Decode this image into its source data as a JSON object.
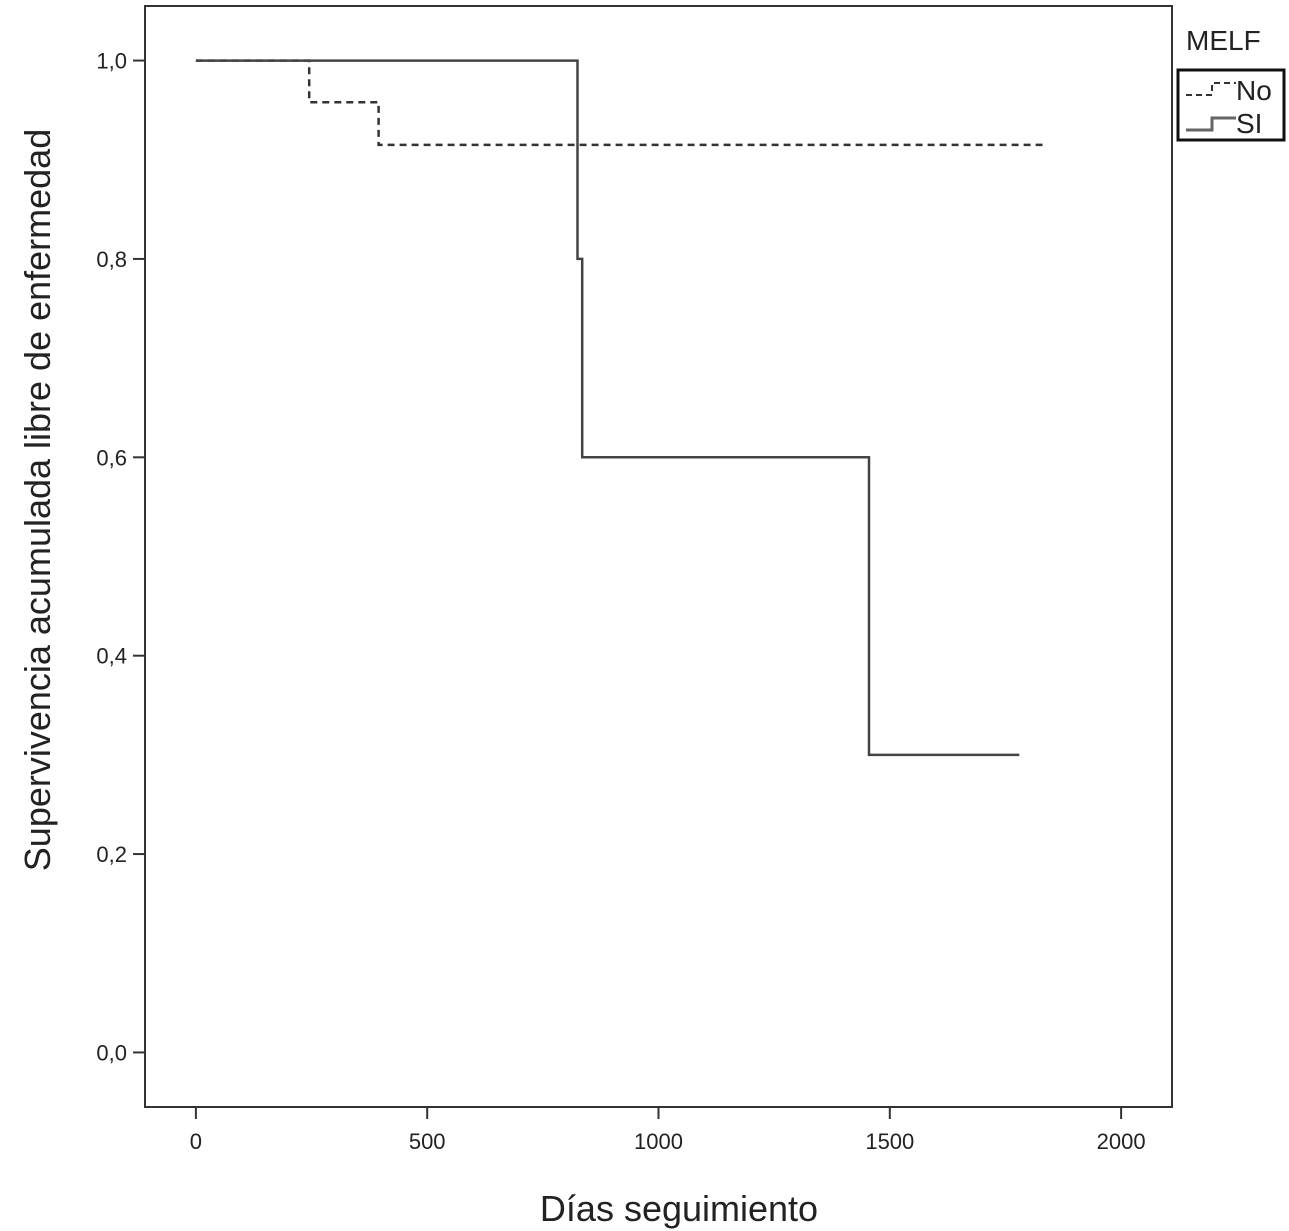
{
  "chart_data": {
    "type": "line",
    "title": "",
    "xlabel": "Días seguimiento",
    "ylabel": "Supervivencia acumulada  libre de enfermedad",
    "xlim": [
      -110,
      2110
    ],
    "ylim": [
      -0.055,
      1.055
    ],
    "x_ticks": [
      0,
      500,
      1000,
      1500,
      2000
    ],
    "x_tick_labels": [
      "0",
      "500",
      "1000",
      "1500",
      "2000"
    ],
    "y_ticks": [
      0.0,
      0.2,
      0.4,
      0.6,
      0.8,
      1.0
    ],
    "y_tick_labels": [
      "0,0",
      "0,2",
      "0,4",
      "0,6",
      "0,8",
      "1,0"
    ],
    "grid": false,
    "legend": {
      "title": "MELF",
      "placement": "top-right outside"
    },
    "series": [
      {
        "name": "No",
        "style": "dashed",
        "color": "#333333",
        "step": true,
        "points": [
          [
            0,
            1.0
          ],
          [
            245,
            1.0
          ],
          [
            245,
            0.958
          ],
          [
            395,
            0.958
          ],
          [
            395,
            0.915
          ],
          [
            1830,
            0.915
          ]
        ]
      },
      {
        "name": "SI",
        "style": "solid",
        "color": "#444444",
        "step": true,
        "points": [
          [
            0,
            1.0
          ],
          [
            825,
            1.0
          ],
          [
            825,
            0.8
          ],
          [
            835,
            0.8
          ],
          [
            835,
            0.6
          ],
          [
            1455,
            0.6
          ],
          [
            1455,
            0.3
          ],
          [
            1780,
            0.3
          ]
        ]
      }
    ]
  }
}
